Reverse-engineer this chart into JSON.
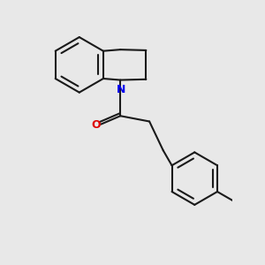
{
  "bg_color": "#e8e8e8",
  "bond_color": "#1a1a1a",
  "N_color": "#0000ee",
  "O_color": "#dd0000",
  "bond_width": 1.5,
  "figsize": [
    3.0,
    3.0
  ],
  "dpi": 100,
  "xlim": [
    -0.1,
    2.8
  ],
  "ylim": [
    -1.6,
    2.2
  ]
}
